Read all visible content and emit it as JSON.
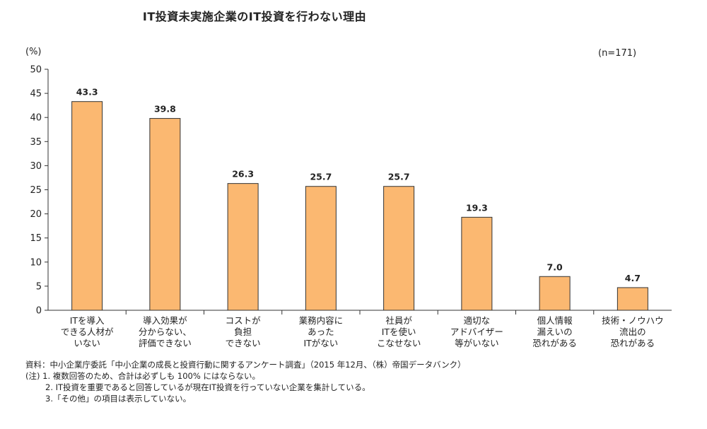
{
  "chart_data": {
    "type": "bar",
    "title": "IT投資未実施企業のIT投資を行わない理由",
    "ylabel": "(%)",
    "xlabel": "",
    "sample_note": "(n=171)",
    "ylim": [
      0,
      50
    ],
    "yticks": [
      0,
      5,
      10,
      15,
      20,
      25,
      30,
      35,
      40,
      45,
      50
    ],
    "grid": false,
    "bar_color": "#FBB871",
    "bar_stroke": "#333333",
    "categories": [
      [
        "ITを導入",
        "できる人材が",
        "いない"
      ],
      [
        "導入効果が",
        "分からない、",
        "評価できない"
      ],
      [
        "コストが",
        "負担",
        "できない"
      ],
      [
        "業務内容に",
        "あった",
        "ITがない"
      ],
      [
        "社員が",
        "ITを使い",
        "こなせない"
      ],
      [
        "適切な",
        "アドバイザー",
        "等がいない"
      ],
      [
        "個人情報",
        "漏えいの",
        "恐れがある"
      ],
      [
        "技術・ノウハウ",
        "流出の",
        "恐れがある"
      ]
    ],
    "values": [
      43.3,
      39.8,
      26.3,
      25.7,
      25.7,
      19.3,
      7.0,
      4.7
    ],
    "value_labels": [
      "43.3",
      "39.8",
      "26.3",
      "25.7",
      "25.7",
      "19.3",
      "7.0",
      "4.7"
    ]
  },
  "notes": {
    "source": "資料：中小企業庁委託「中小企業の成長と投資行動に関するアンケート調査」（2015 年12月、（株）帝国データバンク）",
    "note1": "(注) 1. 複数回答のため、合計は必ずしも 100% にはならない。",
    "note2": "2. IT投資を重要であると回答しているが現在IT投資を行っていない企業を集計している。",
    "note3": "3.「その他」の項目は表示していない。"
  }
}
